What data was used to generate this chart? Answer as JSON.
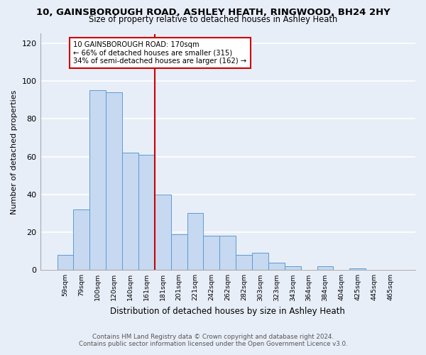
{
  "title_line1": "10, GAINSBOROUGH ROAD, ASHLEY HEATH, RINGWOOD, BH24 2HY",
  "title_line2": "Size of property relative to detached houses in Ashley Heath",
  "xlabel": "Distribution of detached houses by size in Ashley Heath",
  "ylabel": "Number of detached properties",
  "bar_labels": [
    "59sqm",
    "79sqm",
    "100sqm",
    "120sqm",
    "140sqm",
    "161sqm",
    "181sqm",
    "201sqm",
    "221sqm",
    "242sqm",
    "262sqm",
    "282sqm",
    "303sqm",
    "323sqm",
    "343sqm",
    "364sqm",
    "384sqm",
    "404sqm",
    "425sqm",
    "445sqm",
    "465sqm"
  ],
  "bar_heights": [
    8,
    32,
    95,
    94,
    62,
    61,
    40,
    19,
    30,
    18,
    18,
    8,
    9,
    4,
    2,
    0,
    2,
    0,
    1,
    0,
    0
  ],
  "bar_color": "#c6d9f0",
  "bar_edge_color": "#5b9bd5",
  "vline_color": "#cc0000",
  "annotation_title": "10 GAINSBOROUGH ROAD: 170sqm",
  "annotation_line2": "← 66% of detached houses are smaller (315)",
  "annotation_line3": "34% of semi-detached houses are larger (162) →",
  "annotation_box_color": "#cc0000",
  "ylim": [
    0,
    125
  ],
  "yticks": [
    0,
    20,
    40,
    60,
    80,
    100,
    120
  ],
  "footer_line1": "Contains HM Land Registry data © Crown copyright and database right 2024.",
  "footer_line2": "Contains public sector information licensed under the Open Government Licence v3.0.",
  "bg_color": "#e8eef8"
}
